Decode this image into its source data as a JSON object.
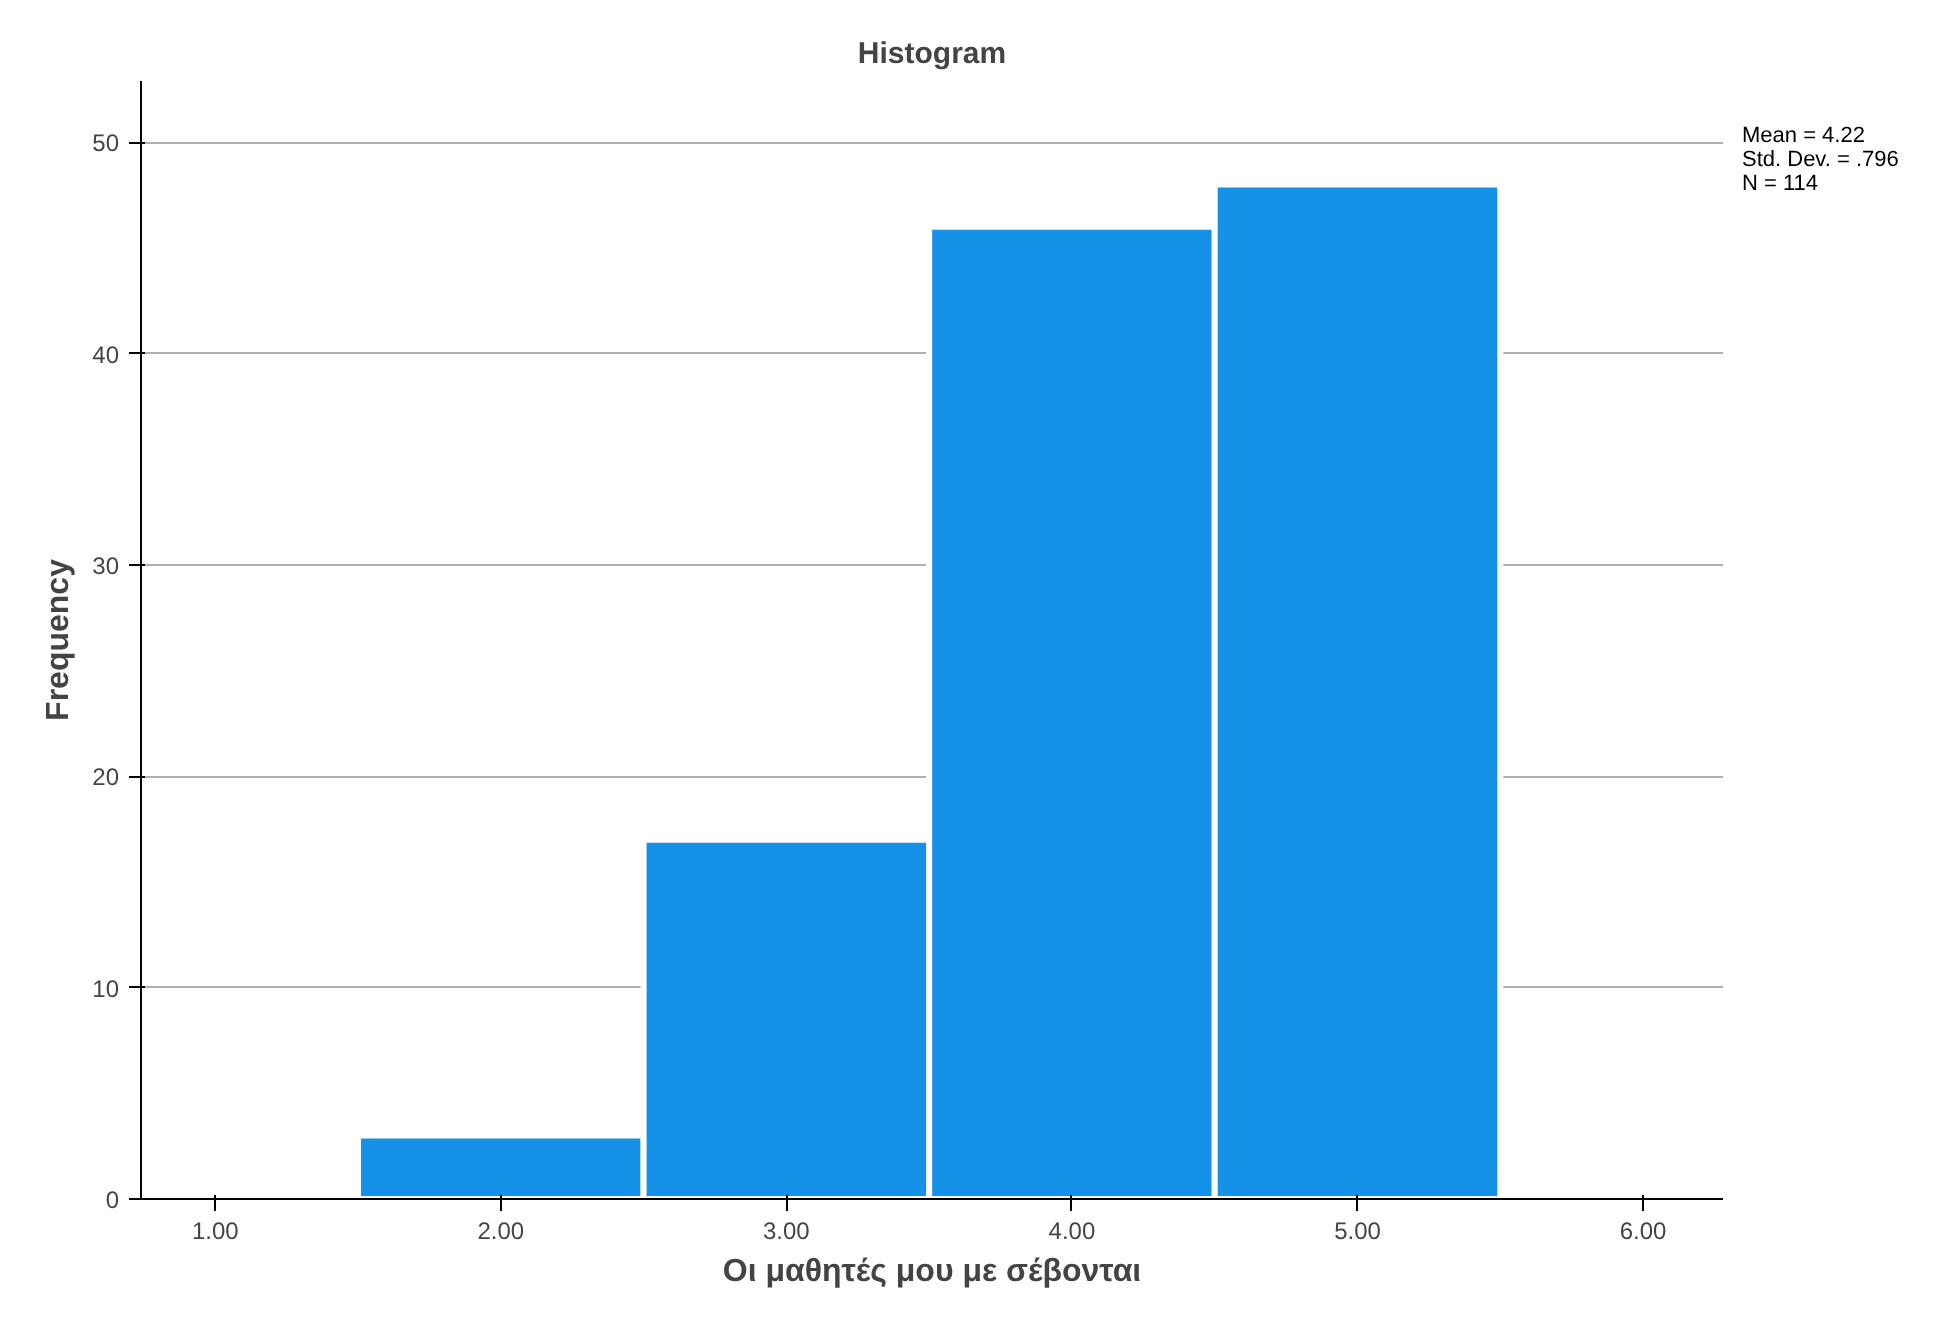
{
  "chart_data": {
    "type": "histogram",
    "title": "Histogram",
    "xlabel": "Οι μαθητές μου με σέβονται",
    "ylabel": "Frequency",
    "bins": [
      1.5,
      2.5,
      3.5,
      4.5,
      5.5
    ],
    "values": [
      3,
      17,
      46,
      48
    ],
    "color": "#1591e8",
    "xlim": [
      0.74,
      6.28
    ],
    "ylim": [
      0,
      52.9
    ],
    "xticks": [
      {
        "value": 1,
        "label": "1.00"
      },
      {
        "value": 2,
        "label": "2.00"
      },
      {
        "value": 3,
        "label": "3.00"
      },
      {
        "value": 4,
        "label": "4.00"
      },
      {
        "value": 5,
        "label": "5.00"
      },
      {
        "value": 6,
        "label": "6.00"
      }
    ],
    "yticks": [
      0,
      10,
      20,
      30,
      40,
      50
    ],
    "grid": "y",
    "annotations": [
      "Mean = 4.22",
      "Std. Dev. = .796",
      "N = 114"
    ]
  }
}
